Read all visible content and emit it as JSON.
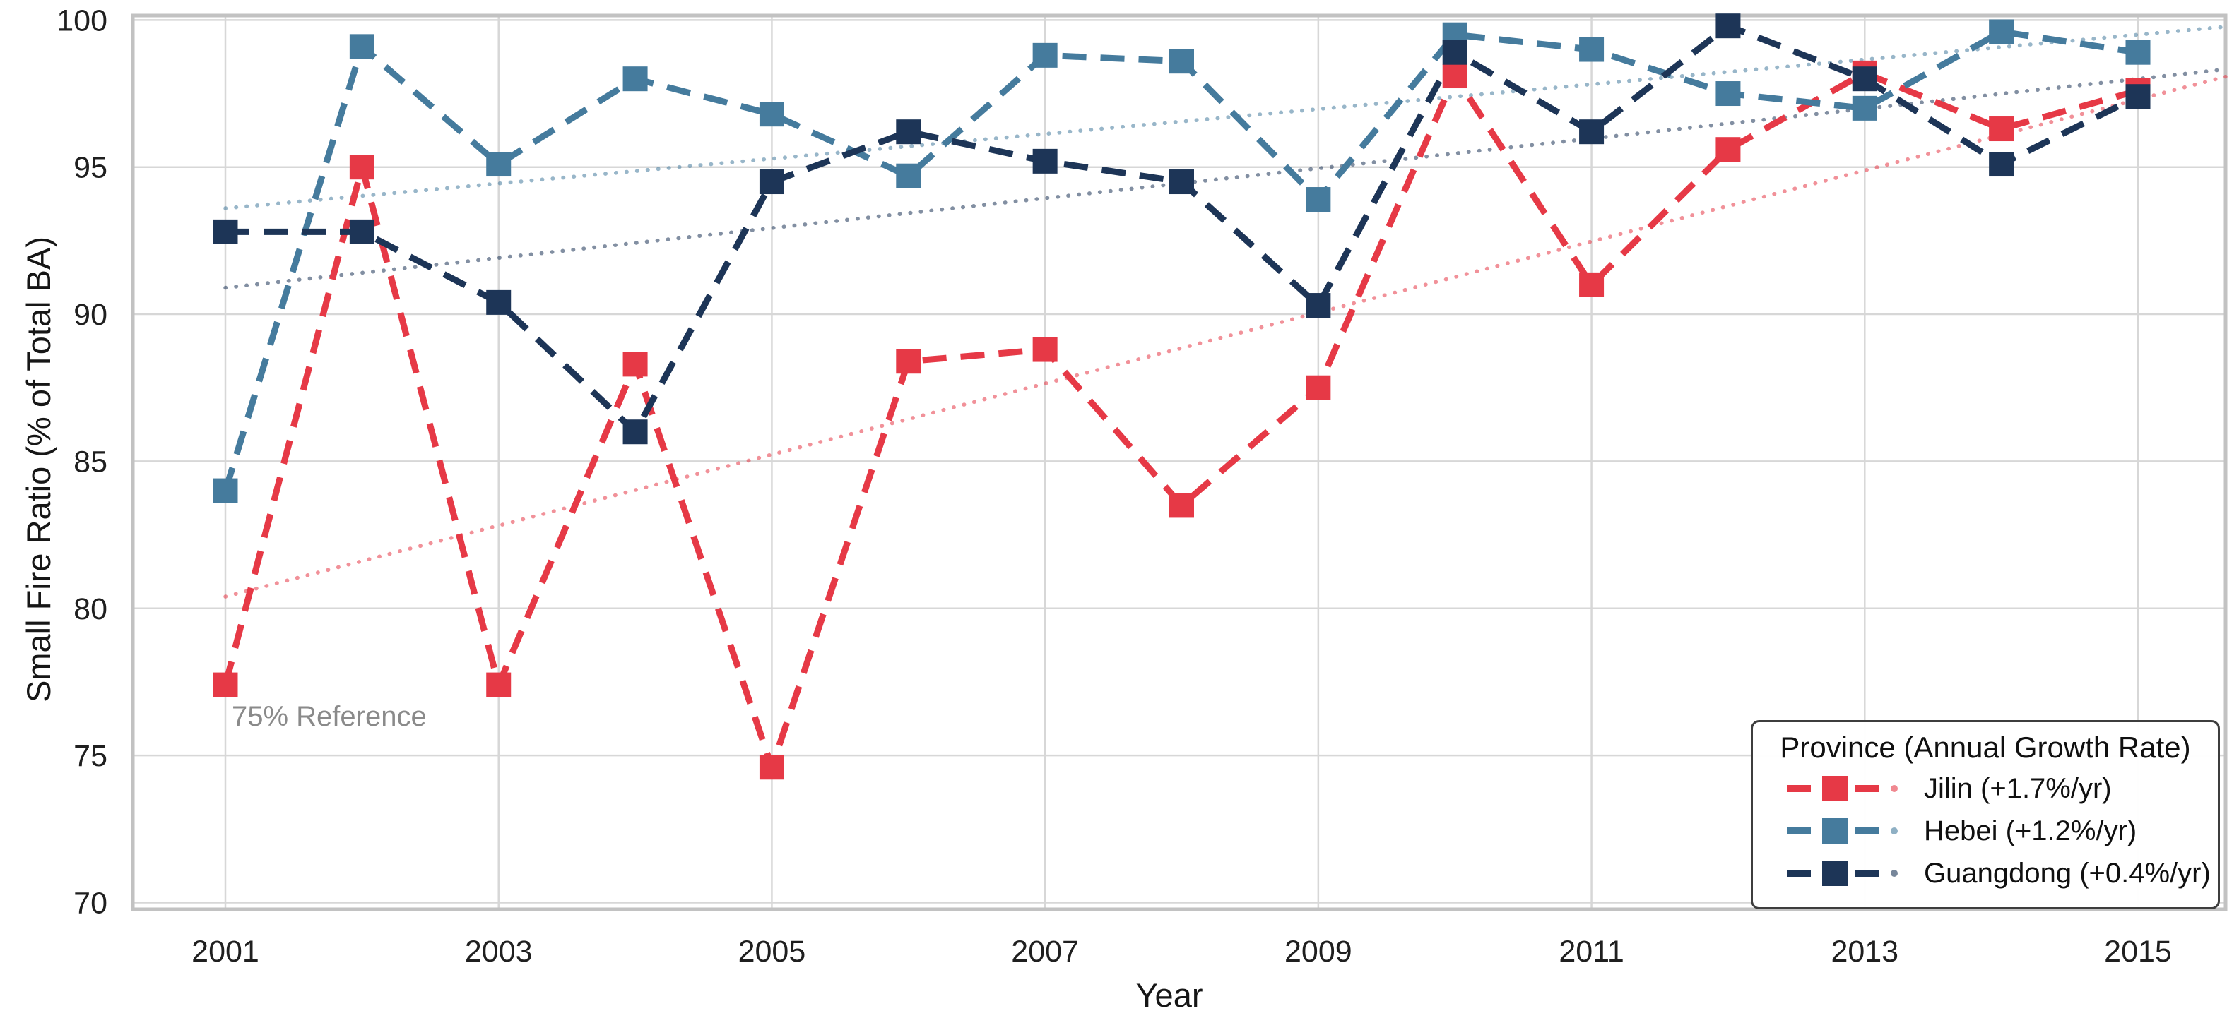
{
  "chart_data": {
    "type": "line",
    "title": "",
    "xlabel": "Year",
    "ylabel": "Small Fire Ratio (% of Total BA)",
    "x": [
      2001,
      2002,
      2003,
      2004,
      2005,
      2006,
      2007,
      2008,
      2009,
      2010,
      2011,
      2012,
      2013,
      2014,
      2015
    ],
    "x_tick_labels": [
      2001,
      2003,
      2005,
      2007,
      2009,
      2011,
      2013,
      2015
    ],
    "y_ticks": [
      70,
      75,
      80,
      85,
      90,
      95,
      100
    ],
    "ylim": [
      70,
      100
    ],
    "grid": true,
    "legend": {
      "title": "Province (Annual Growth Rate)",
      "position": "lower right"
    },
    "annotation": {
      "text": "75% Reference",
      "reference_value": 75
    },
    "series": [
      {
        "name": "Jilin",
        "label": "Jilin (+1.7%/yr)",
        "growth_rate_per_yr": 1.7,
        "color": "#e63946",
        "values": [
          77.4,
          95.0,
          77.4,
          88.3,
          74.6,
          88.4,
          88.8,
          83.5,
          87.5,
          98.1,
          91.0,
          95.6,
          98.2,
          96.3,
          97.6
        ],
        "trend_2001": 80.4,
        "trend_2015": 97.3
      },
      {
        "name": "Hebei",
        "label": "Hebei (+1.2%/yr)",
        "growth_rate_per_yr": 1.2,
        "color": "#457b9d",
        "values": [
          84.0,
          99.1,
          95.1,
          98.0,
          96.8,
          94.7,
          98.8,
          98.6,
          93.9,
          99.5,
          99.0,
          97.5,
          97.0,
          99.6,
          98.9
        ],
        "trend_2001": 93.6,
        "trend_2015": 99.5
      },
      {
        "name": "Guangdong",
        "label": "Guangdong (+0.4%/yr)",
        "growth_rate_per_yr": 0.4,
        "color": "#1d3557",
        "values": [
          92.8,
          92.8,
          90.4,
          86.0,
          94.5,
          96.2,
          95.2,
          94.5,
          90.3,
          98.9,
          96.2,
          99.8,
          98.0,
          95.1,
          97.4
        ],
        "trend_2001": 90.9,
        "trend_2015": 98.0
      }
    ],
    "colors": {
      "background": "#ffffff",
      "grid": "#d7d7d7",
      "spine": "#c2c2c2",
      "tick_text": "#1f1f1f",
      "axis_label_text": "#161616",
      "annotation_text": "#8a8a8a",
      "legend_border": "#3d3d3d"
    }
  }
}
